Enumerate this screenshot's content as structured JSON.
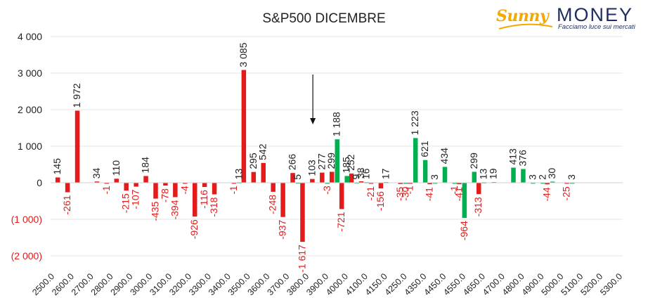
{
  "chart_data": {
    "type": "bar",
    "title": "S&P500 DICEMBRE",
    "xlabel": "",
    "ylabel": "",
    "ylim": [
      -2000,
      4000
    ],
    "yticks": [
      {
        "value": 4000,
        "label": "4 000"
      },
      {
        "value": 3000,
        "label": "3 000"
      },
      {
        "value": 2000,
        "label": "2 000"
      },
      {
        "value": 1000,
        "label": "1 000"
      },
      {
        "value": 0,
        "label": "0"
      },
      {
        "value": -1000,
        "label": "(1 000)"
      },
      {
        "value": -2000,
        "label": "(2 000)"
      }
    ],
    "categories": [
      "2500.0",
      "2600.0",
      "2700.0",
      "2800.0",
      "2900.0",
      "3000.0",
      "3100.0",
      "3200.0",
      "3300.0",
      "3400.0",
      "3500.0",
      "3600.0",
      "3700.0",
      "3800.0",
      "3900.0",
      "4000.0",
      "4100.0",
      "4150.0",
      "4250.0",
      "4350.0",
      "4450.0",
      "4550.0",
      "4650.0",
      "4700.0",
      "4800.0",
      "4900.0",
      "5000.0",
      "5100.0",
      "5200.0",
      "5300.0"
    ],
    "grid": true,
    "colors": {
      "negative": "#e31b1b",
      "positive": "#00b050",
      "neutral_text": "#222222"
    },
    "series": [
      {
        "color": "#e31b1b",
        "points": [
          {
            "slot": 0.5,
            "value": 145,
            "label": "145"
          },
          {
            "slot": 1.0,
            "value": -261,
            "label": "-261"
          },
          {
            "slot": 1.5,
            "value": 1972,
            "label": "1 972"
          },
          {
            "slot": 2.5,
            "value": 34,
            "label": "34"
          },
          {
            "slot": 3.0,
            "value": -1,
            "label": "-1"
          },
          {
            "slot": 3.5,
            "value": 110,
            "label": "110"
          },
          {
            "slot": 4.0,
            "value": -215,
            "label": "-215"
          },
          {
            "slot": 4.5,
            "value": -107,
            "label": "-107"
          },
          {
            "slot": 5.0,
            "value": 184,
            "label": "184"
          },
          {
            "slot": 5.5,
            "value": -435,
            "label": "-435"
          },
          {
            "slot": 6.0,
            "value": -78,
            "label": "-78"
          },
          {
            "slot": 6.5,
            "value": -394,
            "label": "-394"
          },
          {
            "slot": 7.0,
            "value": -4,
            "label": "-4"
          },
          {
            "slot": 7.5,
            "value": -926,
            "label": "-926"
          },
          {
            "slot": 8.0,
            "value": -116,
            "label": "-116"
          },
          {
            "slot": 8.5,
            "value": -318,
            "label": "-318"
          },
          {
            "slot": 9.5,
            "value": -1,
            "label": "-1"
          },
          {
            "slot": 10.0,
            "value": 3085,
            "label": "3 085"
          },
          {
            "slot": 10.5,
            "value": 295,
            "label": "295"
          },
          {
            "slot": 11.0,
            "value": 542,
            "label": "542"
          },
          {
            "slot": 11.5,
            "value": -248,
            "label": "-248"
          },
          {
            "slot": 12.0,
            "value": -937,
            "label": "-937"
          },
          {
            "slot": 12.5,
            "value": 266,
            "label": "266"
          },
          {
            "slot": 13.0,
            "value": -1617,
            "label": "-1 617"
          },
          {
            "slot": 13.5,
            "value": 103,
            "label": "103"
          },
          {
            "slot": 14.0,
            "value": 277,
            "label": "277"
          },
          {
            "slot": 14.5,
            "value": 299,
            "label": "299"
          },
          {
            "slot": 15.0,
            "value": -721,
            "label": "-721"
          },
          {
            "slot": 15.5,
            "value": 252,
            "label": "252"
          },
          {
            "slot": 16.0,
            "value": 38,
            "label": "38"
          },
          {
            "slot": 16.5,
            "value": -21,
            "label": "-21"
          },
          {
            "slot": 17.0,
            "value": -156,
            "label": "-156"
          },
          {
            "slot": 18.0,
            "value": -35,
            "label": "-35"
          },
          {
            "slot": 18.5,
            "value": -1,
            "label": "-1"
          },
          {
            "slot": 19.5,
            "value": -41,
            "label": "-41"
          },
          {
            "slot": 21.0,
            "value": -41,
            "label": "-41"
          },
          {
            "slot": 22.0,
            "value": -313,
            "label": "-313"
          },
          {
            "slot": 25.5,
            "value": -44,
            "label": "-44"
          },
          {
            "slot": 26.5,
            "value": -25,
            "label": "-25"
          }
        ]
      },
      {
        "color": "#00b050",
        "points": [
          {
            "slot": 9.5,
            "value": 13,
            "label": "13"
          },
          {
            "slot": 12.5,
            "value": 5,
            "label": "5"
          },
          {
            "slot": 14.0,
            "value": -3,
            "label": "-3"
          },
          {
            "slot": 14.5,
            "value": 1188,
            "label": "1 188"
          },
          {
            "slot": 15.0,
            "value": 185,
            "label": "185"
          },
          {
            "slot": 15.5,
            "value": 9,
            "label": "9"
          },
          {
            "slot": 16.0,
            "value": 16,
            "label": "16"
          },
          {
            "slot": 17.0,
            "value": 17,
            "label": "17"
          },
          {
            "slot": 18.0,
            "value": -30,
            "label": "-30"
          },
          {
            "slot": 18.5,
            "value": 1223,
            "label": "1 223"
          },
          {
            "slot": 19.0,
            "value": 621,
            "label": "621"
          },
          {
            "slot": 19.5,
            "value": 3,
            "label": "3"
          },
          {
            "slot": 20.0,
            "value": 434,
            "label": "434"
          },
          {
            "slot": 20.5,
            "value": -1,
            "label": "-1"
          },
          {
            "slot": 21.0,
            "value": -964,
            "label": "-964"
          },
          {
            "slot": 21.5,
            "value": 299,
            "label": "299"
          },
          {
            "slot": 22.0,
            "value": 13,
            "label": "13"
          },
          {
            "slot": 22.5,
            "value": 19,
            "label": "19"
          },
          {
            "slot": 23.5,
            "value": 413,
            "label": "413"
          },
          {
            "slot": 24.0,
            "value": 376,
            "label": "376"
          },
          {
            "slot": 24.5,
            "value": 3,
            "label": "3"
          },
          {
            "slot": 25.0,
            "value": 2,
            "label": "2"
          },
          {
            "slot": 25.5,
            "value": 30,
            "label": "30"
          },
          {
            "slot": 26.5,
            "value": 3,
            "label": "3"
          }
        ]
      }
    ],
    "annotations": [
      {
        "type": "arrow-down",
        "slot": 13.5
      }
    ]
  },
  "logo": {
    "brand_left": "Sunny",
    "brand_right": "MONEY",
    "tagline": "Facciamo luce sui mercati"
  }
}
